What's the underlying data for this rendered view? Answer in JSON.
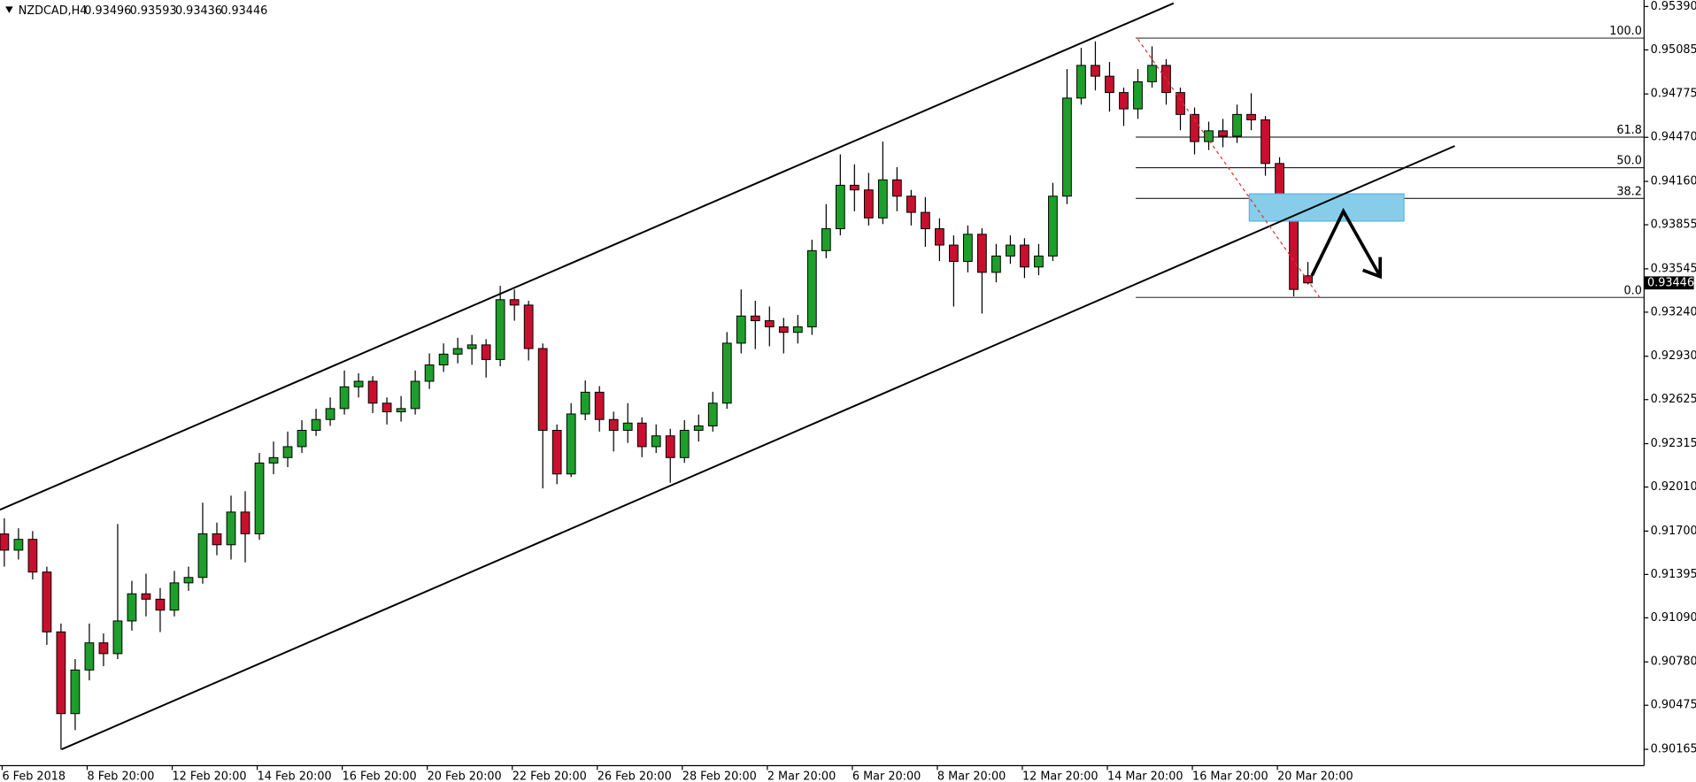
{
  "chart_data": {
    "type": "candlestick",
    "title": "NZDCAD,H4",
    "colors": {
      "up": "#1e9e2a",
      "down": "#c8102e"
    },
    "ylim": [
      0.9005,
      0.95436
    ],
    "yticks": [
      {
        "value": 0.9539,
        "label": "0.95390"
      },
      0.95085,
      0.94775,
      {
        "value": 0.9447,
        "label": "0.94470"
      },
      {
        "value": 0.9416,
        "label": "0.94160"
      },
      0.93855,
      0.93545,
      {
        "value": 0.9324,
        "label": "0.93240"
      },
      {
        "value": 0.9293,
        "label": "0.92930"
      },
      0.92625,
      0.92315,
      {
        "value": 0.9201,
        "label": "0.92010"
      },
      {
        "value": 0.917,
        "label": "0.91700"
      },
      0.91395,
      {
        "value": 0.9109,
        "label": "0.91090"
      },
      {
        "value": 0.9078,
        "label": "0.90780"
      },
      0.90475,
      0.90165
    ],
    "xticks": [
      {
        "value": 0,
        "label": "6 Feb 2018"
      },
      {
        "value": 6,
        "label": "8 Feb 20:00"
      },
      {
        "value": 12,
        "label": "12 Feb 20:00"
      },
      {
        "value": 18,
        "label": "14 Feb 20:00"
      },
      {
        "value": 24,
        "label": "16 Feb 20:00"
      },
      {
        "value": 30,
        "label": "20 Feb 20:00"
      },
      {
        "value": 36,
        "label": "22 Feb 20:00"
      },
      {
        "value": 42,
        "label": "26 Feb 20:00"
      },
      {
        "value": 48,
        "label": "28 Feb 20:00"
      },
      {
        "value": 54,
        "label": "2 Mar 20:00"
      },
      {
        "value": 60,
        "label": "6 Mar 20:00"
      },
      {
        "value": 66,
        "label": "8 Mar 20:00"
      },
      {
        "value": 72,
        "label": "12 Mar 20:00"
      },
      {
        "value": 78,
        "label": "14 Mar 20:00"
      },
      {
        "value": 84,
        "label": "16 Mar 20:00"
      },
      {
        "value": 90,
        "label": "20 Mar 20:00"
      }
    ],
    "open": [
      0.9168,
      0.91566,
      0.91642,
      0.91412,
      0.90991,
      0.90416,
      0.90723,
      0.90914,
      0.90838,
      0.91068,
      0.91259,
      0.91221,
      0.91144,
      0.91336,
      0.91374,
      0.91681,
      0.91604,
      0.91834,
      0.91681,
      0.92179,
      0.92217,
      0.92294,
      0.92409,
      0.92485,
      0.92562,
      0.92715,
      0.92754,
      0.926,
      0.92539,
      0.92562,
      0.92754,
      0.92869,
      0.92945,
      0.92984,
      0.9301,
      0.92907,
      0.93328,
      0.9329,
      0.92984,
      0.92409,
      0.92102,
      0.92524,
      0.92677,
      0.92485,
      0.92409,
      0.9246,
      0.92294,
      0.9237,
      0.92217,
      0.92409,
      0.9244,
      0.926,
      0.93022,
      0.93213,
      0.9318,
      0.93137,
      0.93098,
      0.93137,
      0.93673,
      0.93827,
      0.94133,
      0.941,
      0.93903,
      0.94171,
      0.94056,
      0.93942,
      0.93827,
      0.93712,
      0.93597,
      0.93788,
      0.9352,
      0.93635,
      0.93712,
      0.93558,
      0.93635,
      0.94056,
      0.94746,
      0.94976,
      0.949,
      0.94785,
      0.9467,
      0.94861,
      0.94976,
      0.94785,
      0.94631,
      0.9444,
      0.94516,
      0.94478,
      0.94631,
      0.94593,
      0.94286,
      0.94018,
      0.93496
    ],
    "high": [
      0.9179,
      0.9172,
      0.917,
      0.9145,
      0.9105,
      0.908,
      0.9105,
      0.9098,
      0.9175,
      0.9135,
      0.914,
      0.913,
      0.9142,
      0.9145,
      0.919,
      0.9176,
      0.9195,
      0.9198,
      0.9225,
      0.9233,
      0.924,
      0.9248,
      0.9256,
      0.9264,
      0.9283,
      0.9281,
      0.9279,
      0.9264,
      0.9265,
      0.9283,
      0.9295,
      0.9302,
      0.9306,
      0.9308,
      0.9305,
      0.93425,
      0.934,
      0.9332,
      0.9302,
      0.9245,
      0.926,
      0.9276,
      0.9272,
      0.9254,
      0.926,
      0.925,
      0.9245,
      0.9242,
      0.9248,
      0.9252,
      0.9268,
      0.931,
      0.934,
      0.9332,
      0.9328,
      0.932,
      0.9322,
      0.9375,
      0.94,
      0.9435,
      0.9428,
      0.9422,
      0.9444,
      0.9426,
      0.941,
      0.9405,
      0.939,
      0.9378,
      0.9385,
      0.9383,
      0.9372,
      0.9378,
      0.9376,
      0.9372,
      0.9415,
      0.9495,
      0.951,
      0.95145,
      0.95,
      0.9482,
      0.9495,
      0.9511,
      0.9502,
      0.9482,
      0.9468,
      0.9458,
      0.946,
      0.947,
      0.9478,
      0.9462,
      0.9433,
      0.9405,
      0.93593
    ],
    "low": [
      0.9145,
      0.915,
      0.9136,
      0.909,
      0.90163,
      0.903,
      0.9065,
      0.9075,
      0.908,
      0.91,
      0.911,
      0.9099,
      0.911,
      0.9128,
      0.9133,
      0.9153,
      0.915,
      0.9148,
      0.9164,
      0.921,
      0.9215,
      0.9225,
      0.9237,
      0.9244,
      0.9252,
      0.9264,
      0.9253,
      0.9245,
      0.9247,
      0.9252,
      0.927,
      0.9282,
      0.9288,
      0.9287,
      0.9278,
      0.9286,
      0.9318,
      0.929,
      0.92,
      0.9203,
      0.9208,
      0.9248,
      0.924,
      0.9226,
      0.9232,
      0.9222,
      0.9225,
      0.9204,
      0.9218,
      0.9233,
      0.924,
      0.9256,
      0.9295,
      0.9298,
      0.93,
      0.9295,
      0.9302,
      0.9308,
      0.9362,
      0.9378,
      0.9395,
      0.9385,
      0.9386,
      0.9395,
      0.9385,
      0.937,
      0.936,
      0.9328,
      0.9352,
      0.9323,
      0.9345,
      0.9358,
      0.9348,
      0.935,
      0.936,
      0.94,
      0.947,
      0.948,
      0.9465,
      0.9455,
      0.946,
      0.9482,
      0.947,
      0.9452,
      0.9435,
      0.9438,
      0.944,
      0.9443,
      0.9452,
      0.942,
      0.9395,
      0.93351,
      0.93436
    ],
    "close": [
      0.91566,
      0.91642,
      0.91412,
      0.90991,
      0.90416,
      0.90723,
      0.90914,
      0.90838,
      0.91068,
      0.91259,
      0.91221,
      0.91144,
      0.91336,
      0.91374,
      0.91681,
      0.91604,
      0.91834,
      0.91681,
      0.92179,
      0.92217,
      0.92294,
      0.92409,
      0.92485,
      0.92562,
      0.92715,
      0.92754,
      0.926,
      0.92539,
      0.92562,
      0.92754,
      0.92869,
      0.92945,
      0.92984,
      0.9301,
      0.92907,
      0.93328,
      0.9329,
      0.92984,
      0.92409,
      0.92102,
      0.92524,
      0.92677,
      0.92485,
      0.92409,
      0.9246,
      0.92294,
      0.9237,
      0.92217,
      0.92409,
      0.9244,
      0.926,
      0.93022,
      0.93213,
      0.9318,
      0.93137,
      0.93098,
      0.93137,
      0.93673,
      0.93827,
      0.94133,
      0.941,
      0.93903,
      0.94171,
      0.94056,
      0.93942,
      0.93827,
      0.93712,
      0.93597,
      0.93788,
      0.9352,
      0.93635,
      0.93712,
      0.93558,
      0.93635,
      0.94056,
      0.94746,
      0.94976,
      0.949,
      0.94785,
      0.9467,
      0.94861,
      0.94976,
      0.94785,
      0.94631,
      0.9444,
      0.94516,
      0.94478,
      0.94631,
      0.94593,
      0.94286,
      0.94018,
      0.934,
      0.93446
    ],
    "fibonacci": {
      "high": 0.95168,
      "low": 0.93344,
      "levels": [
        {
          "value": 100,
          "label": "100.0"
        },
        {
          "value": 61.8,
          "label": "61.8"
        },
        {
          "value": 50,
          "label": "50.0"
        },
        {
          "value": 38.2,
          "label": "38.2"
        },
        {
          "value": 0,
          "label": "0.0"
        }
      ]
    }
  }
}
